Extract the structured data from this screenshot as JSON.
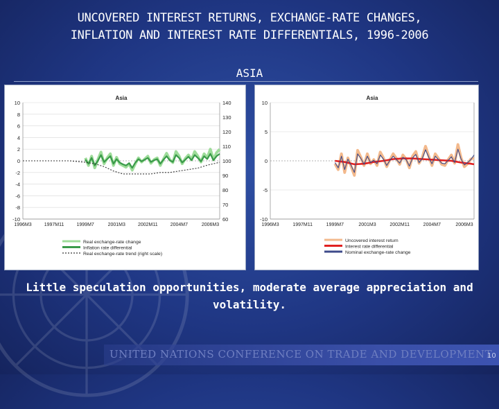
{
  "slide": {
    "title_line1": "UNCOVERED INTEREST RETURNS, EXCHANGE-RATE CHANGES,",
    "title_line2": "INFLATION AND INTEREST RATE DIFFERENTIALS, 1996-2006",
    "subtitle": "ASIA",
    "caption_line1": "Little speculation opportunities, moderate average appreciation and",
    "caption_line2": "volatility.",
    "footer": "UNITED NATIONS CONFERENCE ON TRADE AND DEVELOPMENT",
    "page_number": "10"
  },
  "chart_data": [
    {
      "type": "line",
      "title": "Asia",
      "x_ticks": [
        "1996M3",
        "1997M11",
        "1999M7",
        "2001M3",
        "2002M11",
        "2004M7",
        "2006M3"
      ],
      "xlim": [
        0,
        126
      ],
      "ylim": [
        -10,
        10
      ],
      "y_ticks": [
        -10,
        -8,
        -6,
        -4,
        -2,
        0,
        2,
        4,
        6,
        8,
        10
      ],
      "y2lim": [
        60,
        140
      ],
      "y2_ticks": [
        60,
        70,
        80,
        90,
        100,
        110,
        120,
        130,
        140
      ],
      "grid": true,
      "legend": "bottom",
      "series": [
        {
          "name": "Real exchange-rate change",
          "axis": "left",
          "color": "#9edc9a",
          "x": [
            40,
            42,
            44,
            46,
            48,
            50,
            52,
            54,
            56,
            58,
            60,
            62,
            64,
            66,
            68,
            70,
            72,
            74,
            76,
            78,
            80,
            82,
            84,
            86,
            88,
            90,
            92,
            94,
            96,
            98,
            100,
            102,
            104,
            106,
            108,
            110,
            112,
            114,
            116,
            118,
            120,
            122,
            124,
            126
          ],
          "values": [
            0.5,
            -0.8,
            0.8,
            -1.2,
            0.2,
            1.5,
            -0.5,
            0.5,
            1.2,
            -0.8,
            0.6,
            -0.5,
            -0.8,
            -1.1,
            -0.5,
            -1.6,
            -0.5,
            0.5,
            -0.2,
            0.3,
            0.8,
            -0.4,
            0.2,
            0.5,
            -0.8,
            0.3,
            1.3,
            0.2,
            -0.3,
            1.6,
            0.8,
            -0.5,
            0.4,
            1.0,
            0.2,
            1.6,
            0.8,
            -0.2,
            1.2,
            0.5,
            2.0,
            0.2,
            1.4,
            2.0
          ]
        },
        {
          "name": "Inflation rate differential",
          "axis": "left",
          "color": "#3a9a4a",
          "x": [
            40,
            42,
            44,
            46,
            48,
            50,
            52,
            54,
            56,
            58,
            60,
            62,
            64,
            66,
            68,
            70,
            72,
            74,
            76,
            78,
            80,
            82,
            84,
            86,
            88,
            90,
            92,
            94,
            96,
            98,
            100,
            102,
            104,
            106,
            108,
            110,
            112,
            114,
            116,
            118,
            120,
            122,
            124,
            126
          ],
          "values": [
            0.2,
            -0.5,
            0.5,
            -0.8,
            0.0,
            1.0,
            -0.2,
            0.3,
            0.8,
            -0.5,
            0.3,
            -0.3,
            -0.6,
            -0.8,
            -0.4,
            -1.2,
            -0.3,
            0.3,
            -0.1,
            0.2,
            0.5,
            -0.2,
            0.1,
            0.3,
            -0.5,
            0.2,
            0.8,
            0.1,
            -0.2,
            1.0,
            0.5,
            -0.3,
            0.2,
            0.7,
            0.1,
            1.0,
            0.5,
            -0.1,
            0.8,
            0.3,
            1.2,
            0.1,
            0.8,
            1.2
          ]
        },
        {
          "name": "Real exchange-rate trend (right scale)",
          "axis": "right",
          "color": "#333333",
          "x": [
            0,
            10,
            20,
            30,
            40,
            46,
            52,
            58,
            64,
            70,
            76,
            82,
            88,
            94,
            100,
            106,
            112,
            118,
            126
          ],
          "values": [
            100,
            100,
            100,
            100,
            99,
            98,
            96,
            93,
            91,
            91,
            91,
            91,
            92,
            92,
            93,
            94,
            95,
            97,
            99
          ]
        }
      ]
    },
    {
      "type": "line",
      "title": "Asia",
      "x_ticks": [
        "1996M3",
        "1997M11",
        "1999M7",
        "2001M3",
        "2002M11",
        "2004M7",
        "2006M3"
      ],
      "xlim": [
        0,
        126
      ],
      "ylim": [
        -10,
        10
      ],
      "y_ticks": [
        -10,
        -5,
        0,
        5,
        10
      ],
      "grid": true,
      "legend": "bottom",
      "series": [
        {
          "name": "Uncovered interest return",
          "color": "#f3b98c",
          "x": [
            40,
            42,
            44,
            46,
            48,
            50,
            52,
            54,
            56,
            58,
            60,
            62,
            64,
            66,
            68,
            70,
            72,
            74,
            76,
            78,
            80,
            82,
            84,
            86,
            88,
            90,
            92,
            94,
            96,
            98,
            100,
            102,
            104,
            106,
            108,
            110,
            112,
            114,
            116,
            118,
            120,
            122,
            124,
            126
          ],
          "values": [
            -0.5,
            -1.5,
            1.2,
            -2.0,
            0.5,
            -1.0,
            -2.5,
            1.8,
            0.6,
            -0.8,
            1.2,
            -0.5,
            0.2,
            -0.8,
            1.5,
            0.5,
            -1.0,
            0.2,
            1.2,
            0.4,
            -0.6,
            1.0,
            0.3,
            -1.2,
            0.8,
            1.6,
            -0.4,
            0.6,
            2.5,
            0.8,
            -0.8,
            1.2,
            0.4,
            -0.6,
            -0.8,
            0.2,
            1.0,
            -0.4,
            2.8,
            0.5,
            -1.0,
            -0.5,
            0.3,
            0.5
          ]
        },
        {
          "name": "Interest rate differential",
          "color": "#e02020",
          "x": [
            40,
            46,
            52,
            58,
            64,
            70,
            76,
            82,
            88,
            94,
            100,
            106,
            112,
            118,
            124,
            126
          ],
          "values": [
            0.0,
            -0.2,
            -0.6,
            -0.5,
            -0.2,
            0.0,
            0.3,
            0.4,
            0.4,
            0.3,
            0.2,
            0.1,
            0.0,
            -0.3,
            -0.5,
            -0.6
          ]
        },
        {
          "name": "Nominal exchange-rate change",
          "color": "#3d4a8a",
          "x": [
            40,
            42,
            44,
            46,
            48,
            50,
            52,
            54,
            56,
            58,
            60,
            62,
            64,
            66,
            68,
            70,
            72,
            74,
            76,
            78,
            80,
            82,
            84,
            86,
            88,
            90,
            92,
            94,
            96,
            98,
            100,
            102,
            104,
            106,
            108,
            110,
            112,
            114,
            116,
            118,
            120,
            122,
            124,
            126
          ],
          "values": [
            -0.3,
            -1.2,
            0.8,
            -1.5,
            0.3,
            -0.8,
            -2.0,
            1.2,
            0.4,
            -0.6,
            0.8,
            -0.3,
            0.1,
            -0.5,
            1.0,
            0.3,
            -0.8,
            0.1,
            0.8,
            0.2,
            -0.4,
            0.6,
            0.2,
            -0.9,
            0.5,
            1.1,
            -0.3,
            0.4,
            1.9,
            0.6,
            -0.5,
            0.8,
            0.2,
            -0.4,
            -0.5,
            0.1,
            0.7,
            -0.3,
            2.0,
            0.3,
            -0.7,
            -0.3,
            0.2,
            1.0
          ]
        }
      ]
    }
  ]
}
